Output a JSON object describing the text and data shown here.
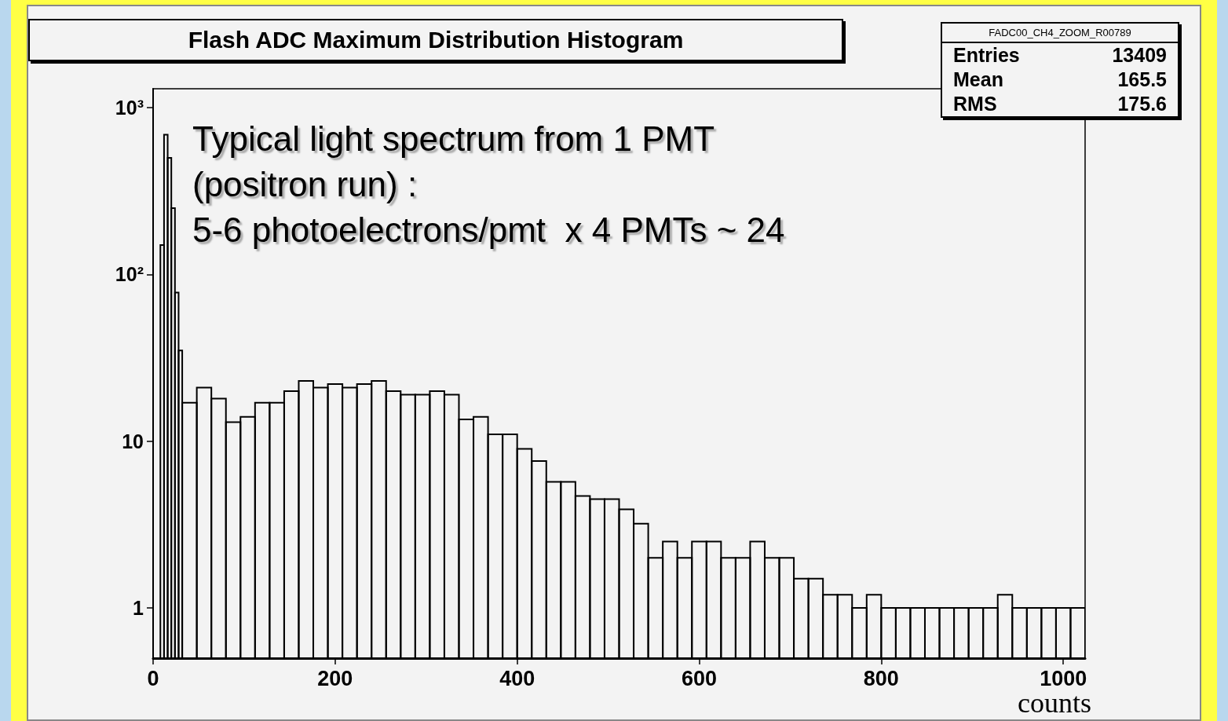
{
  "chart_data": {
    "type": "histogram",
    "title": "Flash ADC Maximum Distribution Histogram",
    "xlabel": "counts",
    "bins": [
      8,
      12,
      16,
      20,
      24,
      28,
      32,
      48,
      64,
      80,
      96,
      112,
      128,
      144,
      160,
      176,
      192,
      208,
      224,
      240,
      256,
      272,
      288,
      304,
      320,
      336,
      352,
      368,
      384,
      400,
      416,
      432,
      448,
      464,
      480,
      496,
      512,
      528,
      544,
      560,
      576,
      592,
      608,
      624,
      640,
      656,
      672,
      688,
      704,
      720,
      736,
      752,
      768,
      784,
      800,
      816,
      832,
      848,
      864,
      880,
      896,
      912,
      928,
      944,
      960,
      976,
      992,
      1008,
      1024
    ],
    "values": [
      150,
      690,
      500,
      250,
      78,
      35,
      17,
      21,
      18,
      13,
      14,
      17,
      17,
      20,
      23,
      21,
      22,
      21,
      22,
      23,
      20,
      19,
      19,
      20,
      19,
      13.5,
      14,
      11,
      11,
      9,
      7.6,
      5.7,
      5.7,
      4.7,
      4.5,
      4.5,
      3.9,
      3.2,
      2,
      2.5,
      2,
      2.5,
      2.5,
      2,
      2,
      2.5,
      2,
      2,
      1.5,
      1.5,
      1.2,
      1.2,
      1,
      1.2,
      1,
      1,
      1,
      1,
      1,
      1,
      1,
      1,
      1.2,
      1,
      1,
      1,
      1,
      1
    ],
    "color": "#000000",
    "log": "y",
    "grid": false,
    "xlim": [
      0,
      1024
    ],
    "xticks": [
      0,
      200,
      400,
      600,
      800,
      1000
    ],
    "ylim": [
      0.5,
      1300
    ],
    "yticks": [
      1,
      10,
      {
        "value": 100,
        "label": "10²"
      },
      {
        "value": 1000,
        "label": "10³"
      }
    ],
    "annotations": [
      "Typical light spectrum from 1 PMT\n(positron run) :\n5-6 photoelectrons/pmt  x 4 PMTs ~ 24",
      "FADC00_CH4_ZOOM_R00789",
      "Entries 13409",
      "Mean 165.5",
      "RMS 175.6"
    ]
  }
}
